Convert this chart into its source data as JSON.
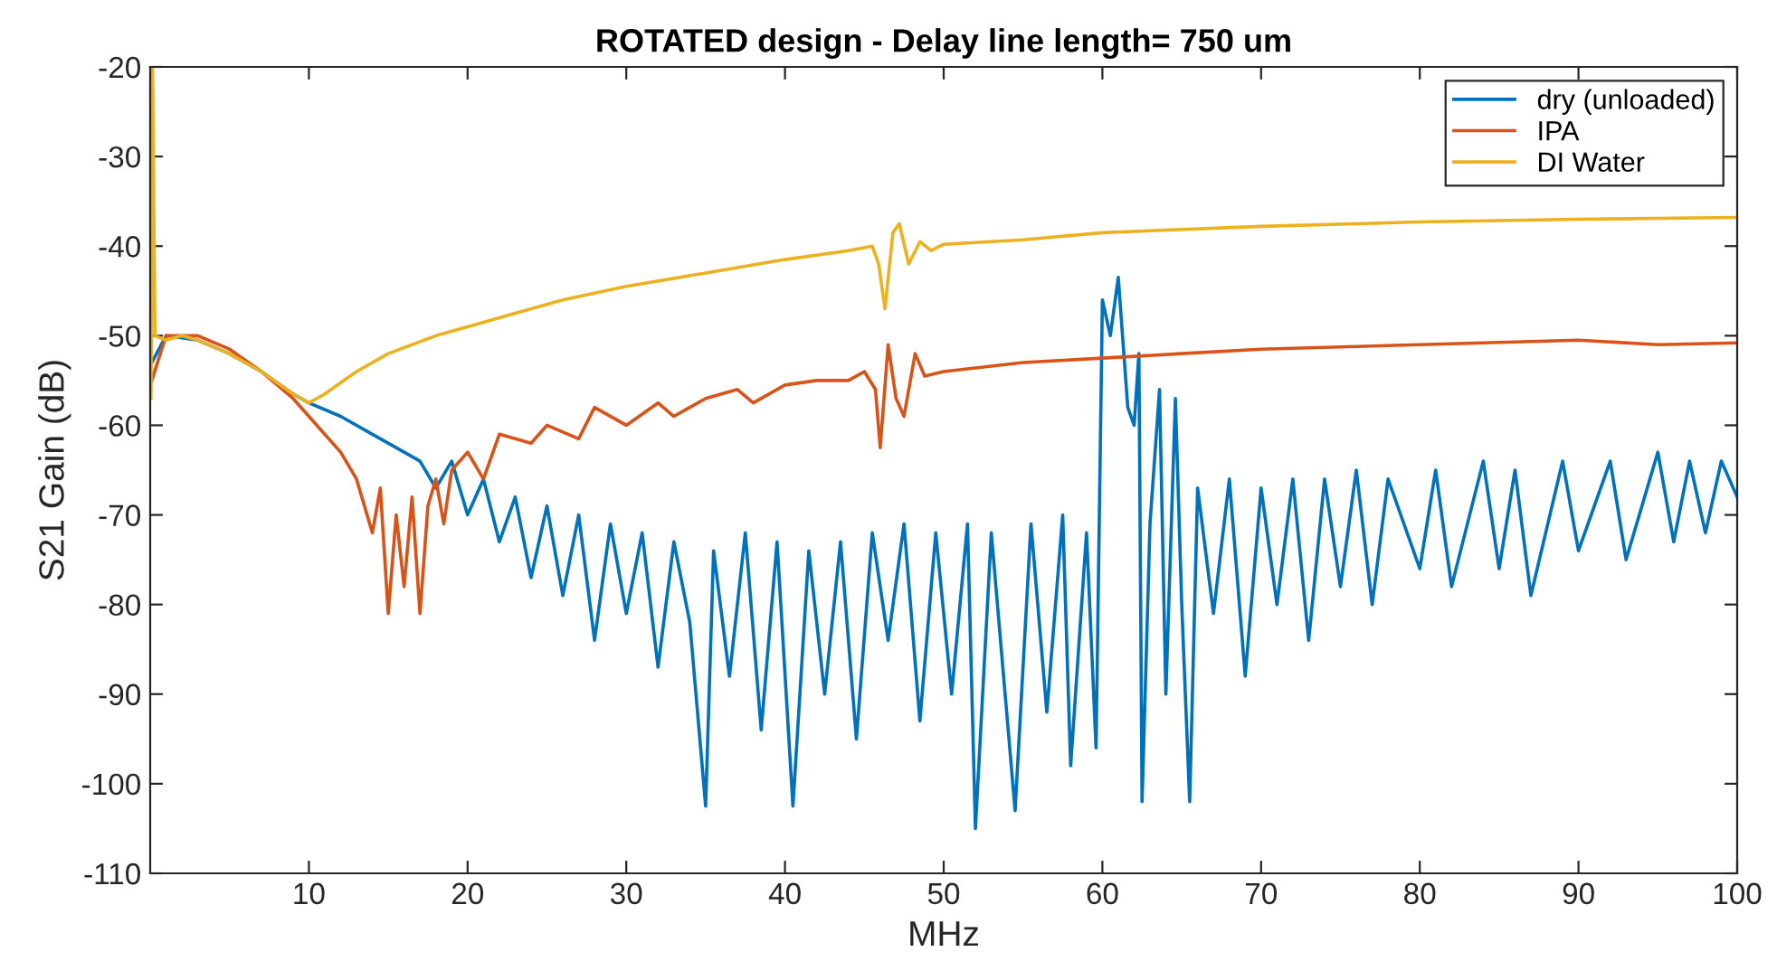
{
  "chart_data": {
    "type": "line",
    "title": "ROTATED design - Delay line length= 750 um",
    "xlabel": "MHz",
    "ylabel": "S21 Gain (dB)",
    "xlim": [
      0,
      100
    ],
    "xticks": [
      10,
      20,
      30,
      40,
      50,
      60,
      70,
      80,
      90,
      100
    ],
    "ylim": [
      -110,
      -20
    ],
    "yticks": [
      -110,
      -100,
      -90,
      -80,
      -70,
      -60,
      -50,
      -40,
      -30,
      -20
    ],
    "grid": false,
    "legend": "top right",
    "line_style": "solid",
    "marker": "none",
    "series": [
      {
        "name": "dry (unloaded)",
        "color": "#0072bd",
        "x": [
          0.1,
          1,
          3,
          5,
          7,
          9,
          10,
          12,
          14,
          16,
          17,
          18,
          19,
          20,
          21,
          22,
          23,
          24,
          25,
          26,
          27,
          28,
          29,
          30,
          31,
          32,
          33,
          34,
          35,
          35.5,
          36.5,
          37.5,
          38.5,
          39.5,
          40.5,
          41.5,
          42.5,
          43.5,
          44.5,
          45.5,
          46.5,
          47.5,
          48.5,
          49.5,
          50.5,
          51.5,
          52,
          53,
          54.5,
          55.5,
          56.5,
          57.5,
          58,
          59,
          59.6,
          60,
          60.5,
          61,
          61.6,
          62,
          62.3,
          62.5,
          63,
          63.6,
          64,
          64.6,
          65,
          65.5,
          66,
          67,
          68,
          69,
          70,
          71,
          72,
          73,
          74,
          75,
          76,
          77,
          78,
          80,
          81,
          82,
          84,
          85,
          86,
          87,
          89,
          90,
          92,
          93,
          95,
          96,
          97,
          98,
          99,
          100
        ],
        "values": [
          -53,
          -50,
          -50.5,
          -52,
          -54,
          -56.5,
          -57.5,
          -59,
          -61,
          -63,
          -64,
          -67,
          -64,
          -70,
          -66,
          -73,
          -68,
          -77,
          -69,
          -79,
          -70,
          -84,
          -71,
          -81,
          -72,
          -87,
          -73,
          -82,
          -102.5,
          -74,
          -88,
          -72,
          -94,
          -73,
          -102.5,
          -74,
          -90,
          -73,
          -95,
          -72,
          -84,
          -71,
          -93,
          -72,
          -90,
          -71,
          -105,
          -72,
          -103,
          -71,
          -92,
          -70,
          -98,
          -72,
          -96,
          -46,
          -50,
          -43.5,
          -58,
          -60,
          -52,
          -102,
          -71,
          -56,
          -90,
          -57,
          -80,
          -102,
          -67,
          -81,
          -66,
          -88,
          -67,
          -80,
          -66,
          -84,
          -66,
          -78,
          -65,
          -80,
          -66,
          -76,
          -65,
          -78,
          -64,
          -76,
          -65,
          -79,
          -64,
          -74,
          -64,
          -75,
          -63,
          -73,
          -64,
          -72,
          -64,
          -68
        ]
      },
      {
        "name": "IPA",
        "color": "#d95319",
        "x": [
          0.1,
          1,
          3,
          5,
          7,
          9,
          10.5,
          12,
          13,
          14,
          14.5,
          15,
          15.5,
          16,
          16.5,
          17,
          17.5,
          18,
          18.5,
          19,
          20,
          21,
          22,
          24,
          25,
          27,
          28,
          30,
          32,
          33,
          35,
          37,
          38,
          40,
          42,
          44,
          45,
          45.7,
          46,
          46.5,
          47,
          47.5,
          48.2,
          48.8,
          50,
          55,
          60,
          65,
          70,
          80,
          90,
          95,
          100
        ],
        "values": [
          -55,
          -50,
          -50,
          -51.5,
          -54,
          -57,
          -60,
          -63,
          -66,
          -72,
          -67,
          -81,
          -70,
          -78,
          -68,
          -81,
          -69,
          -66,
          -71,
          -65,
          -63,
          -66,
          -61,
          -62,
          -60,
          -61.5,
          -58,
          -60,
          -57.5,
          -59,
          -57,
          -56,
          -57.5,
          -55.5,
          -55,
          -55,
          -54,
          -56,
          -62.5,
          -51,
          -57,
          -59,
          -52,
          -54.5,
          -54,
          -53,
          -52.5,
          -52,
          -51.5,
          -51,
          -50.5,
          -51,
          -50.8
        ]
      },
      {
        "name": "DI Water",
        "color": "#edb120",
        "x": [
          0.05,
          0.15,
          0.3,
          1,
          2,
          3,
          5,
          7,
          9,
          10,
          11,
          13,
          15,
          18,
          20,
          23,
          26,
          30,
          35,
          40,
          44,
          45.5,
          45.9,
          46.3,
          46.8,
          47.2,
          47.8,
          48.5,
          49.2,
          50,
          55,
          60,
          70,
          80,
          90,
          100
        ],
        "values": [
          -57,
          -20,
          -50,
          -50.5,
          -50,
          -50.5,
          -52,
          -54,
          -56.5,
          -57.5,
          -56.5,
          -54,
          -52,
          -50,
          -49,
          -47.5,
          -46,
          -44.5,
          -43,
          -41.5,
          -40.5,
          -40,
          -42,
          -47,
          -38.5,
          -37.5,
          -42,
          -39.5,
          -40.5,
          -39.8,
          -39.3,
          -38.5,
          -37.8,
          -37.3,
          -37,
          -36.8
        ]
      }
    ]
  }
}
